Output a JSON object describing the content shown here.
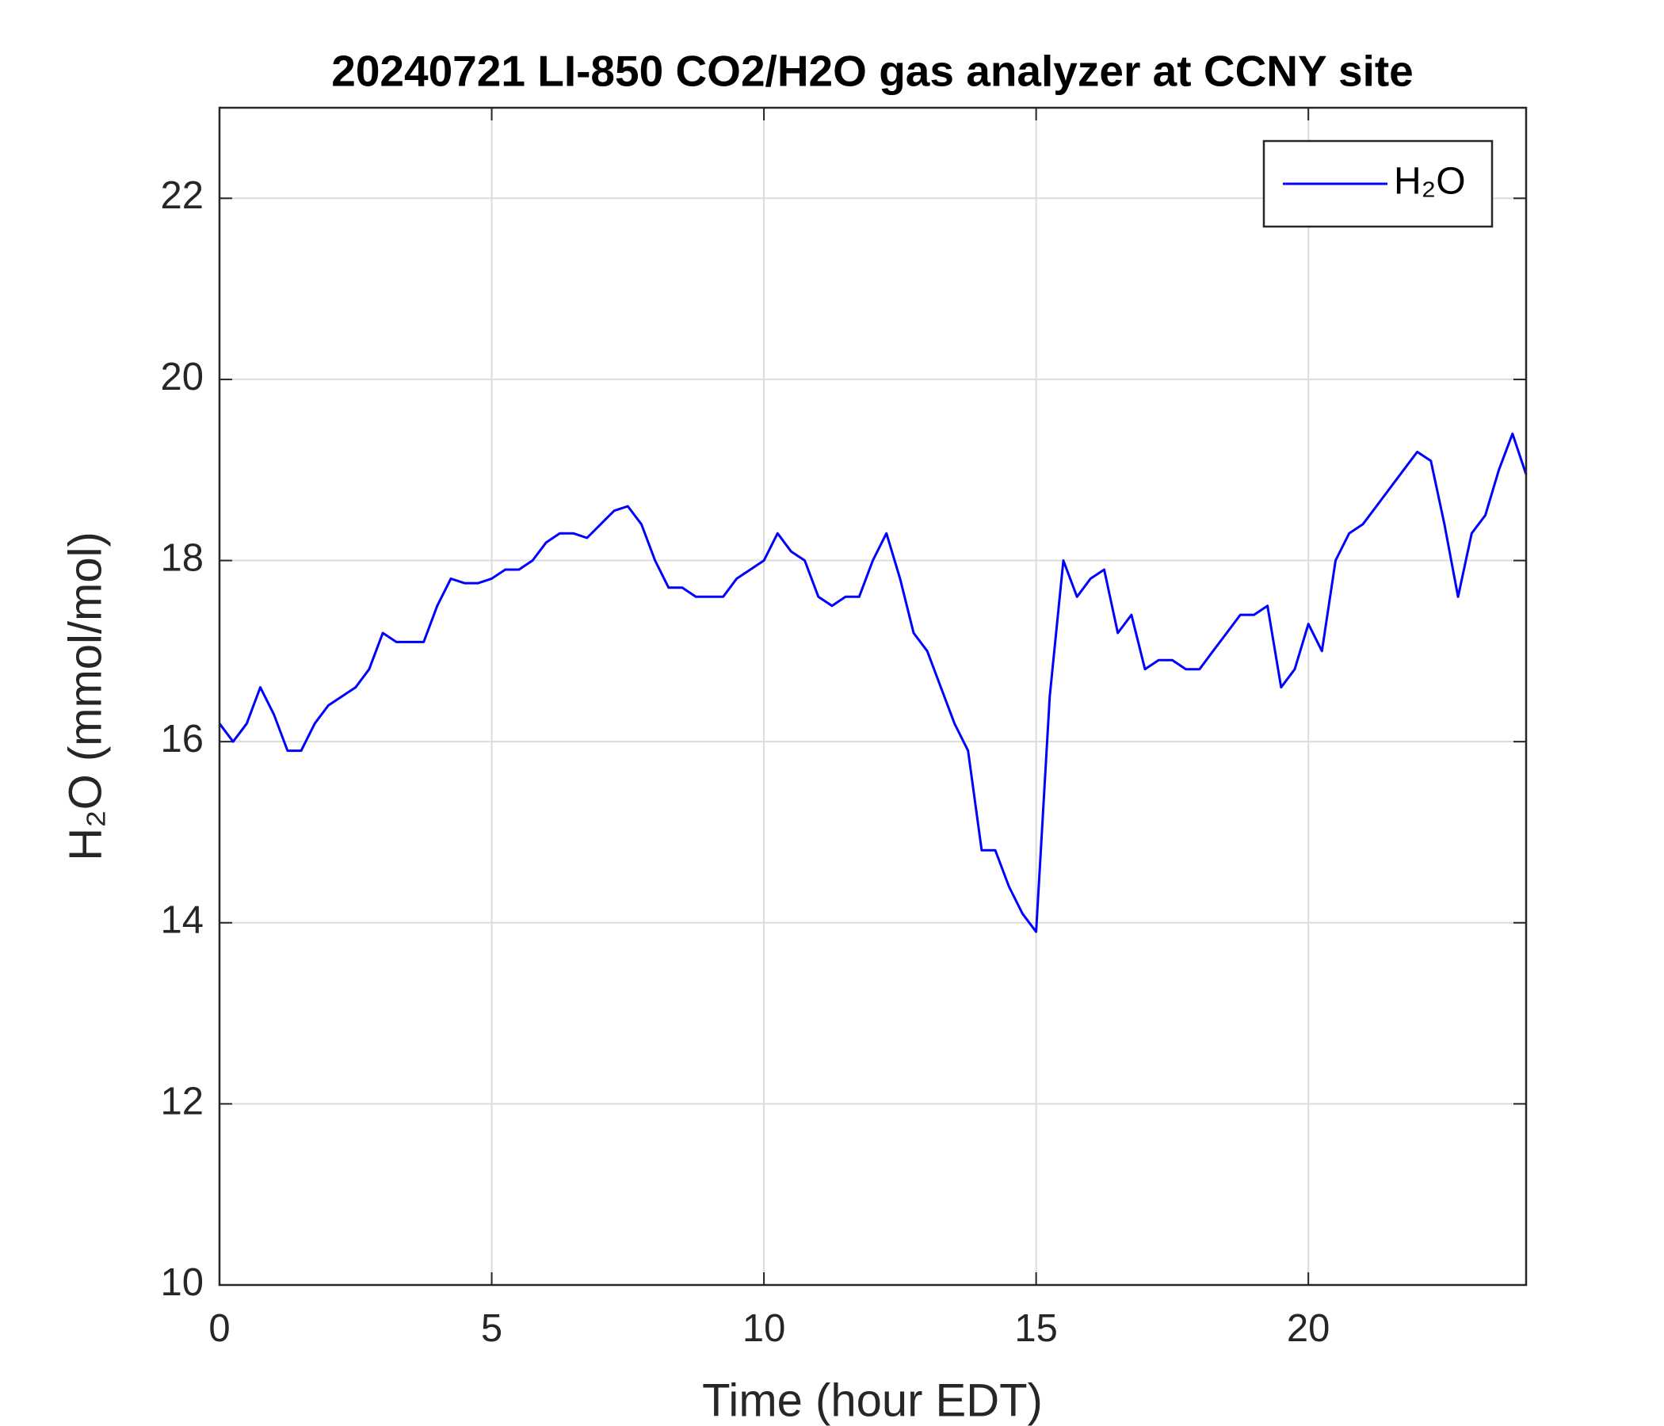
{
  "chart_data": {
    "type": "line",
    "title": "20240721 LI-850 CO2/H2O gas analyzer at CCNY site",
    "x_label": "Time (hour EDT)",
    "y_label": "H₂O (mmol/mol)",
    "xlim": [
      0,
      24
    ],
    "xticks": [
      0,
      5,
      10,
      15,
      20
    ],
    "ylim": [
      10,
      23
    ],
    "yticks": [
      10,
      12,
      14,
      16,
      18,
      20,
      22
    ],
    "grid": true,
    "legend_position": "upper right",
    "x": [
      0,
      0.25,
      0.5,
      0.75,
      1,
      1.25,
      1.5,
      1.75,
      2,
      2.25,
      2.5,
      2.75,
      3,
      3.25,
      3.5,
      3.75,
      4,
      4.25,
      4.5,
      4.75,
      5,
      5.25,
      5.5,
      5.75,
      6,
      6.25,
      6.5,
      6.75,
      7,
      7.25,
      7.5,
      7.75,
      8,
      8.25,
      8.5,
      8.75,
      9,
      9.25,
      9.5,
      9.75,
      10,
      10.25,
      10.5,
      10.75,
      11,
      11.25,
      11.5,
      11.75,
      12,
      12.25,
      12.5,
      12.75,
      13,
      13.25,
      13.5,
      13.75,
      14,
      14.25,
      14.5,
      14.75,
      15,
      15.25,
      15.5,
      15.75,
      16,
      16.25,
      16.5,
      16.75,
      17,
      17.25,
      17.5,
      17.75,
      18,
      18.25,
      18.5,
      18.75,
      19,
      19.25,
      19.5,
      19.75,
      20,
      20.25,
      20.5,
      20.75,
      21,
      21.25,
      21.5,
      21.75,
      22,
      22.25,
      22.5,
      22.75,
      23,
      23.25,
      23.5,
      23.75,
      24
    ],
    "series": [
      {
        "name": "H₂O",
        "color": "#0000ff",
        "values": [
          16.2,
          16.0,
          16.2,
          16.6,
          16.3,
          15.9,
          15.9,
          16.2,
          16.4,
          16.5,
          16.6,
          16.8,
          17.2,
          17.1,
          17.1,
          17.1,
          17.5,
          17.8,
          17.75,
          17.75,
          17.8,
          17.9,
          17.9,
          18.0,
          18.2,
          18.3,
          18.3,
          18.25,
          18.4,
          18.55,
          18.6,
          18.4,
          18.0,
          17.7,
          17.7,
          17.6,
          17.6,
          17.6,
          17.8,
          17.9,
          18.0,
          18.3,
          18.1,
          18.0,
          17.6,
          17.5,
          17.6,
          17.6,
          18.0,
          18.3,
          17.8,
          17.2,
          17.0,
          16.6,
          16.2,
          15.9,
          14.8,
          14.8,
          14.4,
          14.1,
          13.9,
          16.5,
          18.0,
          17.6,
          17.8,
          17.9,
          17.2,
          17.4,
          16.8,
          16.9,
          16.9,
          16.8,
          16.8,
          17.0,
          17.2,
          17.4,
          17.4,
          17.5,
          16.6,
          16.8,
          17.3,
          17.0,
          18.0,
          18.3,
          18.4,
          18.6,
          18.8,
          19.0,
          19.2,
          19.1,
          18.4,
          17.6,
          18.3,
          18.5,
          19.0,
          19.4,
          18.95
        ]
      }
    ]
  }
}
